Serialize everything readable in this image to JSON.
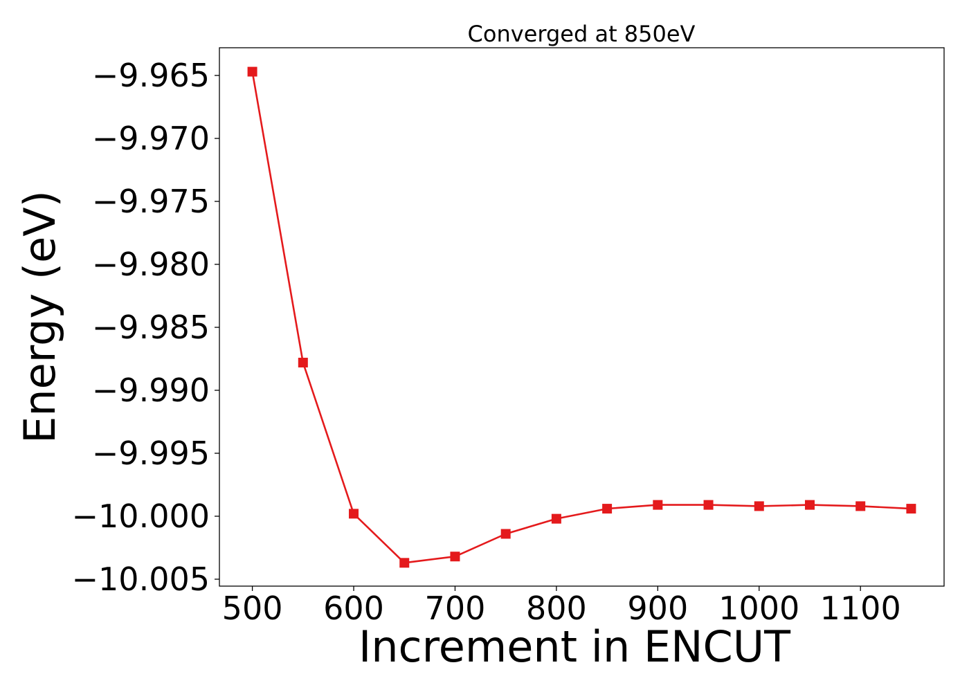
{
  "chart_data": {
    "type": "line",
    "title": "Converged at 850eV",
    "xlabel": "Increment in ENCUT",
    "ylabel": "Energy (eV)",
    "x": [
      500,
      550,
      600,
      650,
      700,
      750,
      800,
      850,
      900,
      950,
      1000,
      1050,
      1100,
      1150
    ],
    "series": [
      {
        "values": [
          -9.9647,
          -9.9878,
          -9.9998,
          -10.0037,
          -10.0032,
          -10.0014,
          -10.0002,
          -9.9994,
          -9.9991,
          -9.9991,
          -9.9992,
          -9.9991,
          -9.9992,
          -9.9994
        ],
        "color": "#e41a1c",
        "marker": "square"
      }
    ],
    "xticks": [
      500,
      600,
      700,
      800,
      900,
      1000,
      1100
    ],
    "xtick_labels": [
      "500",
      "600",
      "700",
      "800",
      "900",
      "1000",
      "1100"
    ],
    "yticks": [
      -9.965,
      -9.97,
      -9.975,
      -9.98,
      -9.985,
      -9.99,
      -9.995,
      -10.0,
      -10.005
    ],
    "ytick_labels": [
      "−9.965",
      "−9.970",
      "−9.975",
      "−9.980",
      "−9.985",
      "−9.990",
      "−9.995",
      "−10.000",
      "−10.005"
    ],
    "xlim": [
      467.5,
      1182.5
    ],
    "ylim": [
      -10.00555,
      -9.9628
    ],
    "grid": false,
    "legend": "none"
  }
}
